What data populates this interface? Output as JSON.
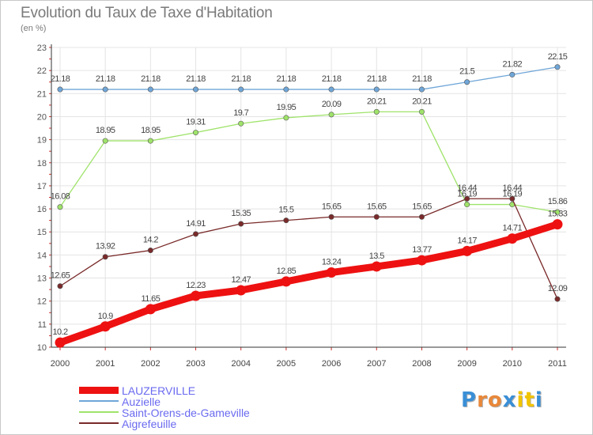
{
  "title": "Evolution du Taux de Taxe d'Habitation",
  "unit": "(en %)",
  "logo": {
    "text": "Proxiti",
    "colors": [
      "#3a8fd6",
      "#e8883a",
      "#e8883a",
      "#3a8fd6",
      "#f2c400",
      "#f2c400",
      "#3a8fd6"
    ]
  },
  "chart_data": {
    "type": "line",
    "title": "Evolution du Taux de Taxe d'Habitation",
    "ylabel": "(en %)",
    "xlabel": "",
    "x": [
      "2000",
      "2001",
      "2002",
      "2003",
      "2004",
      "2005",
      "2006",
      "2007",
      "2008",
      "2009",
      "2010",
      "2011"
    ],
    "ylim": [
      10,
      23
    ],
    "yticks": [
      10,
      11,
      12,
      13,
      14,
      15,
      16,
      17,
      18,
      19,
      20,
      21,
      22,
      23
    ],
    "grid": true,
    "legend": "bottom-left",
    "series": [
      {
        "name": "LAUZERVILLE",
        "color": "#ee1111",
        "values": [
          10.2,
          10.9,
          11.65,
          12.23,
          12.47,
          12.85,
          13.24,
          13.5,
          13.77,
          14.17,
          14.71,
          15.33
        ],
        "labels": [
          "10.2",
          "10.9",
          "11.65",
          "12.23",
          "12.47",
          "12.85",
          "13.24",
          "13.5",
          "13.77",
          "14.17",
          "14.71",
          "15.33"
        ]
      },
      {
        "name": "Auzielle",
        "color": "#6fa6d8",
        "values": [
          21.18,
          21.18,
          21.18,
          21.18,
          21.18,
          21.18,
          21.18,
          21.18,
          21.18,
          21.5,
          21.82,
          22.15
        ],
        "labels": [
          "21.18",
          "21.18",
          "21.18",
          "21.18",
          "21.18",
          "21.18",
          "21.18",
          "21.18",
          "21.18",
          "21.5",
          "21.82",
          "22.15"
        ]
      },
      {
        "name": "Saint-Orens-de-Gameville",
        "color": "#9fe36a",
        "values": [
          16.08,
          18.95,
          18.95,
          19.31,
          19.7,
          19.95,
          20.09,
          20.21,
          20.21,
          16.19,
          16.19,
          15.86
        ],
        "labels": [
          "16.08",
          "18.95",
          "18.95",
          "19.31",
          "19.7",
          "19.95",
          "20.09",
          "20.21",
          "20.21",
          "16.19",
          "16.19",
          "15.86"
        ]
      },
      {
        "name": "Aigrefeuille",
        "color": "#7a2a2a",
        "values": [
          12.65,
          13.92,
          14.2,
          14.91,
          15.35,
          15.5,
          15.65,
          15.65,
          15.65,
          16.44,
          16.44,
          12.09
        ],
        "labels": [
          "12.65",
          "13.92",
          "14.2",
          "14.91",
          "15.35",
          "15.5",
          "15.65",
          "15.65",
          "15.65",
          "16.44",
          "16.44",
          "12.09"
        ]
      }
    ]
  }
}
